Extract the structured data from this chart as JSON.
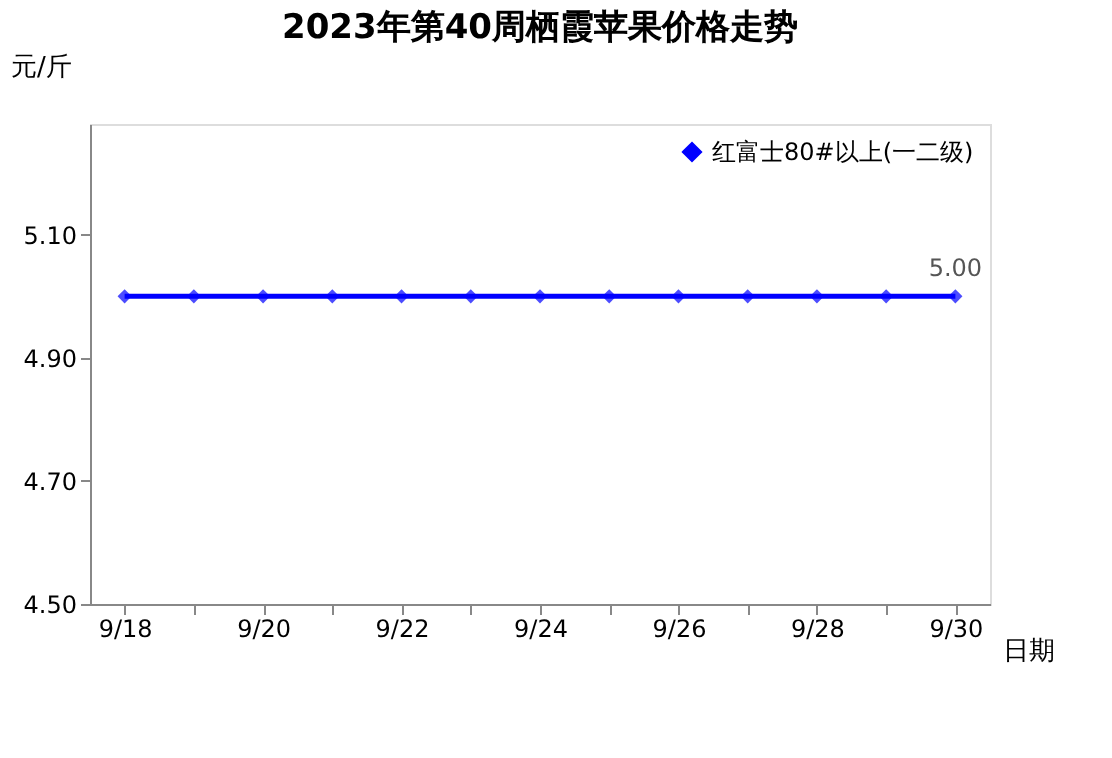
{
  "chart_data": {
    "type": "line",
    "title": "2023年第40周栖霞苹果价格走势",
    "ylabel": "元/斤",
    "xlabel": "日期",
    "categories": [
      "9/18",
      null,
      "9/20",
      null,
      "9/22",
      null,
      "9/24",
      null,
      "9/26",
      null,
      "9/28",
      null,
      "9/30"
    ],
    "series": [
      {
        "name": "红富士80#以上(一二级)",
        "color": "#0000ff",
        "values": [
          5.0,
          5.0,
          5.0,
          5.0,
          5.0,
          5.0,
          5.0,
          5.0,
          5.0,
          5.0,
          5.0,
          5.0,
          5.0
        ],
        "value_labels": [
          null,
          null,
          null,
          null,
          null,
          null,
          null,
          null,
          null,
          null,
          null,
          null,
          "5.00"
        ]
      }
    ],
    "ylim": [
      4.5,
      5.28
    ],
    "yticks": [
      {
        "value": 4.5,
        "label": "4.50"
      },
      {
        "value": 4.7,
        "label": "4.70"
      },
      {
        "value": 4.9,
        "label": "4.90"
      },
      {
        "value": 5.1,
        "label": "5.10"
      }
    ],
    "marker": "diamond",
    "line_style": "solid",
    "grid": false,
    "legend": "top right"
  }
}
